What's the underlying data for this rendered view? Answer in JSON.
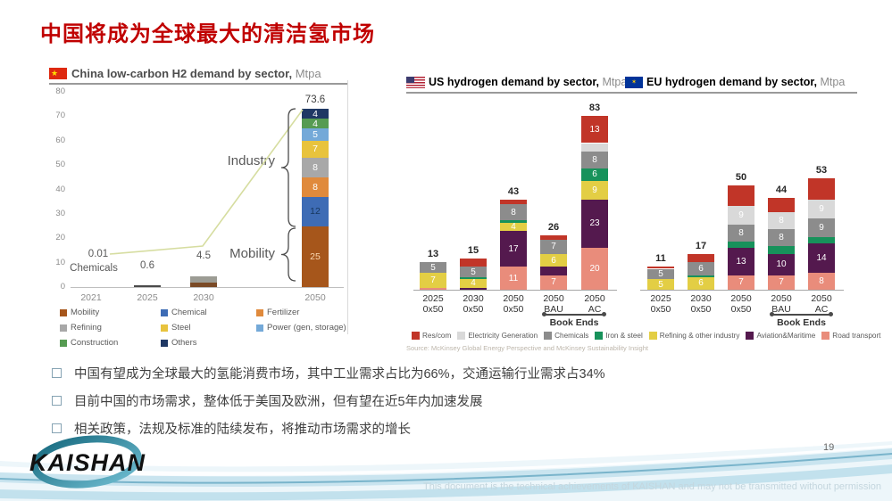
{
  "slide": {
    "title": "中国将成为全球最大的清洁氢市场",
    "page_number": "19",
    "footer_note": "This document is the technical achievements of KAISHAN and may not be transmitted without permission",
    "logo_text": "KAISHAN"
  },
  "bullets": [
    "中国有望成为全球最大的氢能消费市场，其中工业需求占比为66%，交通运输行业需求占34%",
    "目前中国的市场需求，整体低于美国及欧洲，但有望在近5年内加速发展",
    "相关政策，法规及标准的陆续发布，将推动市场需求的增长"
  ],
  "source": "Source: McKinsey Global Energy Perspective and McKinsey Sustainability Insight",
  "sectors": {
    "Res/com": "#C13528",
    "Electricity Generation": "#D9D9D9",
    "Chemicals": "#8C8C8C",
    "Iron & steel": "#17925B",
    "Refining & other industry": "#E3CE44",
    "Aviation&Maritime": "#54194E",
    "Road transport": "#E98C7B"
  },
  "right_legend": [
    {
      "label": "Res/com",
      "color": "#C13528"
    },
    {
      "label": "Electricity Generation",
      "color": "#D9D9D9"
    },
    {
      "label": "Chemicals",
      "color": "#8C8C8C"
    },
    {
      "label": "Iron & steel",
      "color": "#17925B"
    },
    {
      "label": "Refining & other industry",
      "color": "#E3CE44"
    },
    {
      "label": "Aviation&Maritime",
      "color": "#54194E"
    },
    {
      "label": "Road transport",
      "color": "#E98C7B"
    }
  ],
  "chart_data": [
    {
      "id": "china",
      "type": "bar",
      "title": "China low-carbon H2 demand by sector,",
      "unit": "Mtpa",
      "ylim": [
        0,
        80
      ],
      "yticks": [
        0,
        10,
        20,
        30,
        40,
        50,
        60,
        70,
        80
      ],
      "categories": [
        "2021",
        "2025",
        "2030",
        "2050"
      ],
      "totals": [
        0.01,
        0.6,
        4.5,
        73.6
      ],
      "total_labels": {
        "2021": "0.01",
        "2025": "0.6",
        "2030": "4.5",
        "2050": "73.6"
      },
      "annotations": {
        "chemicals": "Chemicals",
        "industry": "Industry",
        "mobility": "Mobility"
      },
      "bar_2030": [
        {
          "name": "Mobility",
          "value": 2.0,
          "color": "#7A4A26"
        },
        {
          "name": "Refining",
          "value": 2.5,
          "color": "#9C9C94"
        }
      ],
      "stack_2050": [
        {
          "name": "Mobility",
          "value": 25,
          "color": "#A6561B",
          "label_color": "#FAD7B0"
        },
        {
          "name": "Chemical",
          "value": 12,
          "color": "#3E6CB5",
          "label_color": "#17375E"
        },
        {
          "name": "Fertilizer",
          "value": 8,
          "color": "#E08A3C"
        },
        {
          "name": "Refining",
          "value": 8,
          "color": "#A8A8A8"
        },
        {
          "name": "Steel",
          "value": 7,
          "color": "#E8C33D"
        },
        {
          "name": "Power (gen, storage)",
          "value": 5,
          "color": "#74A9D8"
        },
        {
          "name": "Construction",
          "value": 4,
          "color": "#569B52"
        },
        {
          "name": "Others",
          "value": 4,
          "color": "#1F3864"
        }
      ],
      "legend": [
        {
          "label": "Mobility",
          "color": "#A6561B"
        },
        {
          "label": "Chemical",
          "color": "#3E6CB5"
        },
        {
          "label": "Fertilizer",
          "color": "#E08A3C"
        },
        {
          "label": "Refining",
          "color": "#A8A8A8"
        },
        {
          "label": "Steel",
          "color": "#E8C33D"
        },
        {
          "label": "Power (gen, storage)",
          "color": "#74A9D8"
        },
        {
          "label": "Construction",
          "color": "#569B52"
        },
        {
          "label": "Others",
          "color": "#1F3864"
        }
      ]
    },
    {
      "id": "us",
      "type": "stacked-bar",
      "title": "US hydrogen demand by sector,",
      "unit": "Mtpa",
      "book_ends_label": "Book Ends",
      "categories": [
        [
          "2025",
          "0x50"
        ],
        [
          "2030",
          "0x50"
        ],
        [
          "2050",
          "0x50"
        ],
        [
          "2050",
          "BAU"
        ],
        [
          "2050",
          "AC"
        ]
      ],
      "totals": [
        13,
        15,
        43,
        26,
        83
      ],
      "bars": [
        {
          "segments": [
            {
              "sector": "Road transport",
              "value": 1,
              "label": ""
            },
            {
              "sector": "Refining & other industry",
              "value": 7,
              "label": "7"
            },
            {
              "sector": "Chemicals",
              "value": 5,
              "label": "5"
            }
          ]
        },
        {
          "segments": [
            {
              "sector": "Aviation&Maritime",
              "value": 1,
              "label": ""
            },
            {
              "sector": "Refining & other industry",
              "value": 4,
              "label": "4"
            },
            {
              "sector": "Iron & steel",
              "value": 1,
              "label": ""
            },
            {
              "sector": "Chemicals",
              "value": 5,
              "label": "5"
            },
            {
              "sector": "Res/com",
              "value": 4,
              "label": ""
            }
          ]
        },
        {
          "segments": [
            {
              "sector": "Road transport",
              "value": 11,
              "label": "11"
            },
            {
              "sector": "Aviation&Maritime",
              "value": 17,
              "label": "17"
            },
            {
              "sector": "Refining & other industry",
              "value": 4,
              "label": "4"
            },
            {
              "sector": "Iron & steel",
              "value": 1,
              "label": ""
            },
            {
              "sector": "Chemicals",
              "value": 8,
              "label": "8"
            },
            {
              "sector": "Res/com",
              "value": 2,
              "label": ""
            }
          ]
        },
        {
          "segments": [
            {
              "sector": "Road transport",
              "value": 7,
              "label": "7"
            },
            {
              "sector": "Aviation&Maritime",
              "value": 4,
              "label": ""
            },
            {
              "sector": "Refining & other industry",
              "value": 6,
              "label": "6"
            },
            {
              "sector": "Chemicals",
              "value": 7,
              "label": "7"
            },
            {
              "sector": "Res/com",
              "value": 2,
              "label": ""
            }
          ]
        },
        {
          "segments": [
            {
              "sector": "Road transport",
              "value": 20,
              "label": "20"
            },
            {
              "sector": "Aviation&Maritime",
              "value": 23,
              "label": "23"
            },
            {
              "sector": "Refining & other industry",
              "value": 9,
              "label": "9"
            },
            {
              "sector": "Iron & steel",
              "value": 6,
              "label": "6"
            },
            {
              "sector": "Chemicals",
              "value": 8,
              "label": "8"
            },
            {
              "sector": "Electricity Generation",
              "value": 4,
              "label": ""
            },
            {
              "sector": "Res/com",
              "value": 13,
              "label": "13"
            }
          ]
        }
      ]
    },
    {
      "id": "eu",
      "type": "stacked-bar",
      "title": "EU hydrogen demand by sector,",
      "unit": "Mtpa",
      "book_ends_label": "Book Ends",
      "categories": [
        [
          "2025",
          "0x50"
        ],
        [
          "2030",
          "0x50"
        ],
        [
          "2050",
          "0x50"
        ],
        [
          "2050",
          "BAU"
        ],
        [
          "2050",
          "AC"
        ]
      ],
      "totals": [
        11,
        17,
        50,
        44,
        53
      ],
      "bars": [
        {
          "segments": [
            {
              "sector": "Refining & other industry",
              "value": 5,
              "label": "5"
            },
            {
              "sector": "Chemicals",
              "value": 5,
              "label": "5"
            },
            {
              "sector": "Res/com",
              "value": 1,
              "label": ""
            }
          ]
        },
        {
          "segments": [
            {
              "sector": "Refining & other industry",
              "value": 6,
              "label": "6"
            },
            {
              "sector": "Iron & steel",
              "value": 1,
              "label": ""
            },
            {
              "sector": "Chemicals",
              "value": 6,
              "label": "6"
            },
            {
              "sector": "Res/com",
              "value": 4,
              "label": ""
            }
          ]
        },
        {
          "segments": [
            {
              "sector": "Road transport",
              "value": 7,
              "label": "7"
            },
            {
              "sector": "Aviation&Maritime",
              "value": 13,
              "label": "13"
            },
            {
              "sector": "Iron & steel",
              "value": 3,
              "label": ""
            },
            {
              "sector": "Chemicals",
              "value": 8,
              "label": "8"
            },
            {
              "sector": "Electricity Generation",
              "value": 9,
              "label": "9"
            },
            {
              "sector": "Res/com",
              "value": 10,
              "label": ""
            }
          ]
        },
        {
          "segments": [
            {
              "sector": "Road transport",
              "value": 7,
              "label": "7"
            },
            {
              "sector": "Aviation&Maritime",
              "value": 10,
              "label": "10"
            },
            {
              "sector": "Iron & steel",
              "value": 4,
              "label": ""
            },
            {
              "sector": "Chemicals",
              "value": 8,
              "label": "8"
            },
            {
              "sector": "Electricity Generation",
              "value": 8,
              "label": "8"
            },
            {
              "sector": "Res/com",
              "value": 7,
              "label": ""
            }
          ]
        },
        {
          "segments": [
            {
              "sector": "Road transport",
              "value": 8,
              "label": "8"
            },
            {
              "sector": "Aviation&Maritime",
              "value": 14,
              "label": "14"
            },
            {
              "sector": "Iron & steel",
              "value": 3,
              "label": ""
            },
            {
              "sector": "Chemicals",
              "value": 9,
              "label": "9"
            },
            {
              "sector": "Electricity Generation",
              "value": 9,
              "label": "9"
            },
            {
              "sector": "Res/com",
              "value": 10,
              "label": ""
            }
          ]
        }
      ]
    }
  ]
}
